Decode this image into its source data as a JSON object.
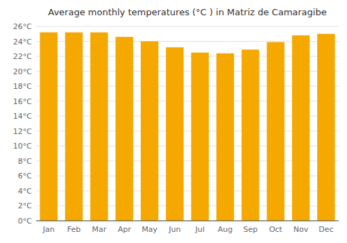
{
  "chart_data": {
    "type": "bar",
    "title": "Average monthly temperatures (°C ) in Matriz de Camaragibe",
    "categories": [
      "Jan",
      "Feb",
      "Mar",
      "Apr",
      "May",
      "Jun",
      "Jul",
      "Aug",
      "Sep",
      "Oct",
      "Nov",
      "Dec"
    ],
    "values": [
      25.2,
      25.2,
      25.2,
      24.6,
      24.0,
      23.2,
      22.5,
      22.4,
      22.9,
      23.9,
      24.8,
      25.0
    ],
    "color": "#F5A800",
    "ylim": [
      0,
      26
    ],
    "yticks": [
      {
        "value": 0,
        "label": "0°C"
      },
      {
        "value": 2,
        "label": "2°C"
      },
      {
        "value": 4,
        "label": "4°C"
      },
      {
        "value": 6,
        "label": "6°C"
      },
      {
        "value": 8,
        "label": "8°C"
      },
      {
        "value": 10,
        "label": "10°C"
      },
      {
        "value": 12,
        "label": "12°C"
      },
      {
        "value": 14,
        "label": "14°C"
      },
      {
        "value": 16,
        "label": "16°C"
      },
      {
        "value": 18,
        "label": "18°C"
      },
      {
        "value": 20,
        "label": "20°C"
      },
      {
        "value": 22,
        "label": "22°C"
      },
      {
        "value": 24,
        "label": "24°C"
      },
      {
        "value": 26,
        "label": "26°C"
      }
    ],
    "grid": true
  }
}
